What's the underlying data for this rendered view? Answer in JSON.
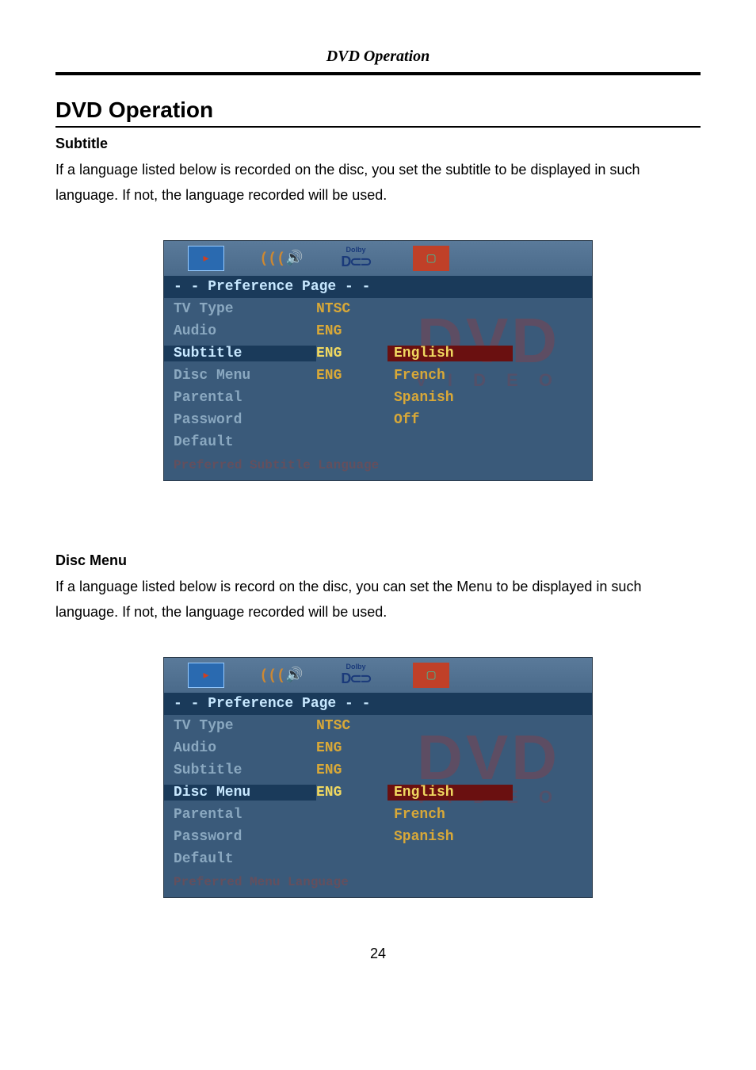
{
  "header": {
    "running_title": "DVD Operation",
    "page_number": "24"
  },
  "main": {
    "heading": "DVD Operation"
  },
  "sections": {
    "subtitle": {
      "heading": "Subtitle",
      "body": "If a language listed below is recorded on the disc, you set the subtitle to be displayed in such language. If not, the language recorded will be used."
    },
    "discmenu": {
      "heading": "Disc Menu",
      "body": "If a language listed below is record on the disc, you can set the Menu to be displayed in such language. If not, the language recorded will be used."
    }
  },
  "osd_common": {
    "page_title": "- -  Preference Page  - -",
    "icons": {
      "dolby_label": "Dolby",
      "dolby_dd": "D⊂⊃"
    },
    "colors": {
      "screen_bg": "#3a5a7a",
      "titlebar_bg": "#1a3a5a",
      "titlebar_fg": "#c8e8ff",
      "label_fg": "#8aa8c0",
      "value_fg": "#d8a838",
      "value_hl_fg": "#f0d860",
      "opt_selected_bg": "#6a1010",
      "watermark_fg": "rgba(200,40,30,0.25)"
    },
    "watermark": {
      "line1": "DVD",
      "line2": "V I D E O"
    }
  },
  "osd1": {
    "rows": [
      {
        "label": "TV Type",
        "value": "NTSC",
        "option": ""
      },
      {
        "label": "Audio",
        "value": "ENG",
        "option": ""
      },
      {
        "label": "Subtitle",
        "value": "ENG",
        "option": "English",
        "selected": true,
        "opt_selected": true
      },
      {
        "label": "Disc Menu",
        "value": "ENG",
        "option": "French"
      },
      {
        "label": "Parental",
        "value": "",
        "option": "Spanish"
      },
      {
        "label": "Password",
        "value": "",
        "option": "Off"
      },
      {
        "label": "Default",
        "value": "",
        "option": ""
      }
    ],
    "footer_hint": "Preferred Subtitle Language"
  },
  "osd2": {
    "rows": [
      {
        "label": "TV Type",
        "value": "NTSC",
        "option": ""
      },
      {
        "label": "Audio",
        "value": "ENG",
        "option": ""
      },
      {
        "label": "Subtitle",
        "value": "ENG",
        "option": ""
      },
      {
        "label": "Disc Menu",
        "value": "ENG",
        "option": "English",
        "selected": true,
        "opt_selected": true
      },
      {
        "label": "Parental",
        "value": "",
        "option": "French"
      },
      {
        "label": "Password",
        "value": "",
        "option": "Spanish"
      },
      {
        "label": "Default",
        "value": "",
        "option": ""
      }
    ],
    "footer_hint": "Preferred Menu Language"
  }
}
